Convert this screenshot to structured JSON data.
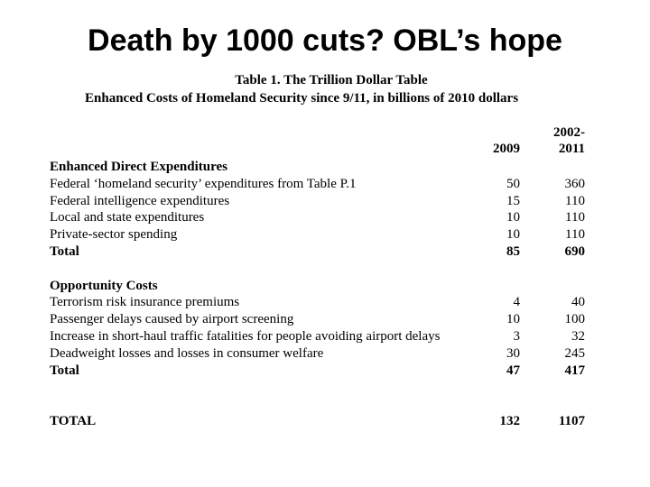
{
  "title": "Death by 1000 cuts? OBL’s hope",
  "table": {
    "title": "Table 1. The Trillion Dollar Table",
    "subtitle": "Enhanced Costs of Homeland Security since 9/11, in billions of 2010 dollars",
    "columns": [
      "2009",
      "2002-2011"
    ],
    "sections": [
      {
        "heading": "Enhanced Direct Expenditures",
        "rows": [
          {
            "label": "Federal ‘homeland security’ expenditures from Table P.1",
            "values": [
              50,
              360
            ]
          },
          {
            "label": "Federal intelligence expenditures",
            "values": [
              15,
              110
            ]
          },
          {
            "label": "Local and state expenditures",
            "values": [
              10,
              110
            ]
          },
          {
            "label": "Private-sector spending",
            "values": [
              10,
              110
            ]
          }
        ],
        "total": {
          "label": "Total",
          "values": [
            85,
            690
          ]
        }
      },
      {
        "heading": "Opportunity Costs",
        "rows": [
          {
            "label": "Terrorism risk insurance premiums",
            "values": [
              4,
              40
            ]
          },
          {
            "label": "Passenger delays caused by airport screening",
            "values": [
              10,
              100
            ]
          },
          {
            "label": "Increase in short-haul traffic fatalities for people avoiding airport delays",
            "values": [
              3,
              32
            ]
          },
          {
            "label": "Deadweight losses and losses in consumer welfare",
            "values": [
              30,
              245
            ]
          }
        ],
        "total": {
          "label": "Total",
          "values": [
            47,
            417
          ]
        }
      }
    ],
    "grand_total": {
      "label": "TOTAL",
      "values": [
        132,
        1107
      ]
    }
  }
}
